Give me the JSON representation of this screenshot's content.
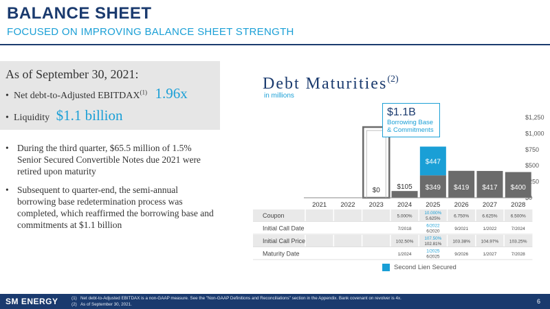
{
  "header": {
    "title": "BALANCE SHEET",
    "subtitle": "FOCUSED ON IMPROVING BALANCE SHEET STRENGTH"
  },
  "summary": {
    "as_of": "As of September 30, 2021:",
    "net_debt_label": "Net debt-to-Adjusted EBITDAX",
    "net_debt_footnote": "(1)",
    "net_debt_value": "1.96x",
    "liquidity_label": "Liquidity",
    "liquidity_value": "$1.1 billion"
  },
  "bullets": [
    "During the third quarter, $65.5 million of 1.5% Senior Secured Convertible Notes due 2021 were retired upon maturity",
    "Subsequent to quarter-end, the semi-annual borrowing base redetermination process was completed, which reaffirmed the borrowing base and commitments at $1.1 billion"
  ],
  "chart_data": {
    "type": "bar",
    "title": "Debt Maturities",
    "title_footnote": "(2)",
    "subtitle": "in millions",
    "categories": [
      "2021",
      "2022",
      "2023",
      "2024",
      "2025",
      "2026",
      "2027",
      "2028"
    ],
    "ylim": [
      0,
      1250
    ],
    "yticks": [
      0,
      250,
      500,
      750,
      1000,
      1250
    ],
    "ytick_labels": [
      "$0",
      "$250",
      "$500",
      "$750",
      "$1,000",
      "$1,250"
    ],
    "series": [
      {
        "values": [
          0,
          0,
          0,
          105,
          349,
          419,
          417,
          400
        ],
        "color": "#6b6b6b"
      },
      {
        "name": "Second Lien Secured",
        "values": [
          0,
          0,
          0,
          0,
          447,
          0,
          0,
          0
        ],
        "color": "#1a9fd6"
      }
    ],
    "bar_labels": [
      "",
      "",
      "$0",
      "$105",
      "$349",
      "$419",
      "$417",
      "$400"
    ],
    "second_lien_label": "$447",
    "borrowing_base": {
      "value": 1100,
      "label_big": "$1.1B",
      "label_small_1": "Borrowing Base",
      "label_small_2": "& Commitments",
      "category": "2023"
    },
    "legend": "top-right"
  },
  "table": {
    "rows": [
      {
        "label": "Coupon",
        "cells": [
          "",
          "",
          "",
          "5.000%",
          "10.000%\n5.625%",
          "6.750%",
          "6.625%",
          "6.500%"
        ]
      },
      {
        "label": "Initial Call Date",
        "cells": [
          "",
          "",
          "",
          "7/2018",
          "6/2022\n6/2020",
          "9/2021",
          "1/2022",
          "7/2024"
        ]
      },
      {
        "label": "Initial Call Price",
        "cells": [
          "",
          "",
          "",
          "102.50%",
          "107.50%\n102.81%",
          "103.38%",
          "104.97%",
          "103.25%"
        ]
      },
      {
        "label": "Maturity Date",
        "cells": [
          "",
          "",
          "",
          "1/2024",
          "1/2025\n6/2025",
          "9/2026",
          "1/2027",
          "7/2028"
        ]
      }
    ]
  },
  "legend": {
    "label": "Second Lien Secured",
    "color": "#1a9fd6"
  },
  "footer": {
    "logo_sm": "SM",
    "logo_energy": "ENERGY",
    "footnote1_mark": "(1)",
    "footnote1": "Net debt-to-Adjusted EBITDAX is a non-GAAP measure. See the \"Non-GAAP Definitions and Reconciliations\" section in the Appendix. Bank covenant on revolver is 4x.",
    "footnote2_mark": "(2)",
    "footnote2": "As of September 30, 2021.",
    "page": "6"
  }
}
